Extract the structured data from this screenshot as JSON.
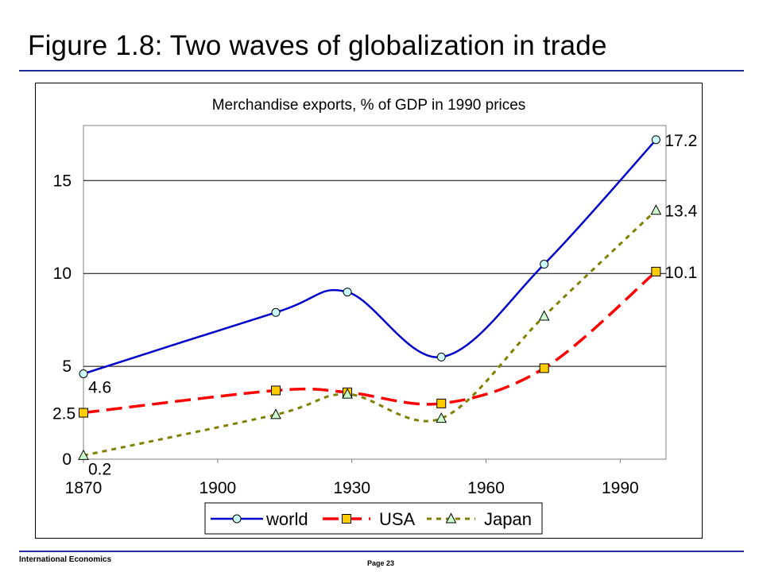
{
  "slide": {
    "title": "Figure 1.8: Two waves of globalization in trade",
    "footer_left": "International Economics",
    "footer_page": "Page 23"
  },
  "chart_data": {
    "type": "line",
    "title": "Merchandise exports, % of GDP in 1990 prices",
    "xlabel": "",
    "ylabel": "",
    "xlim": [
      1870,
      2000
    ],
    "ylim": [
      0,
      18
    ],
    "x_ticks": [
      1870,
      1900,
      1930,
      1960,
      1990
    ],
    "y_ticks": [
      0,
      5,
      10,
      15
    ],
    "y_tick_labels": [
      "0",
      "5",
      "10",
      "15"
    ],
    "grid": "horizontal",
    "legend_position": "bottom",
    "series": [
      {
        "name": "world",
        "color": "#0000cc",
        "style": "solid",
        "marker": "circle",
        "marker_fill": "#ccffff",
        "x": [
          1870,
          1913,
          1929,
          1950,
          1973,
          1998
        ],
        "y": [
          4.6,
          7.9,
          9.0,
          5.5,
          10.5,
          17.2
        ]
      },
      {
        "name": "USA",
        "color": "#ff0000",
        "style": "dashed",
        "marker": "square",
        "marker_fill": "#ffcc00",
        "x": [
          1870,
          1913,
          1929,
          1950,
          1973,
          1998
        ],
        "y": [
          2.5,
          3.7,
          3.6,
          3.0,
          4.9,
          10.1
        ]
      },
      {
        "name": "Japan",
        "color": "#808000",
        "style": "dotted",
        "marker": "triangle",
        "marker_fill": "#ccffcc",
        "x": [
          1870,
          1913,
          1929,
          1950,
          1973,
          1998
        ],
        "y": [
          0.2,
          2.4,
          3.5,
          2.2,
          7.7,
          13.4
        ]
      }
    ],
    "annotations": [
      {
        "text": "17.2",
        "x": 1998,
        "y": 17.2
      },
      {
        "text": "13.4",
        "x": 1998,
        "y": 13.4
      },
      {
        "text": "10.1",
        "x": 1998,
        "y": 10.1
      },
      {
        "text": "4.6",
        "x": 1870,
        "y": 4.6
      },
      {
        "text": "2.5",
        "x": 1870,
        "y": 2.5
      },
      {
        "text": "0.2",
        "x": 1870,
        "y": 0.2
      }
    ]
  }
}
